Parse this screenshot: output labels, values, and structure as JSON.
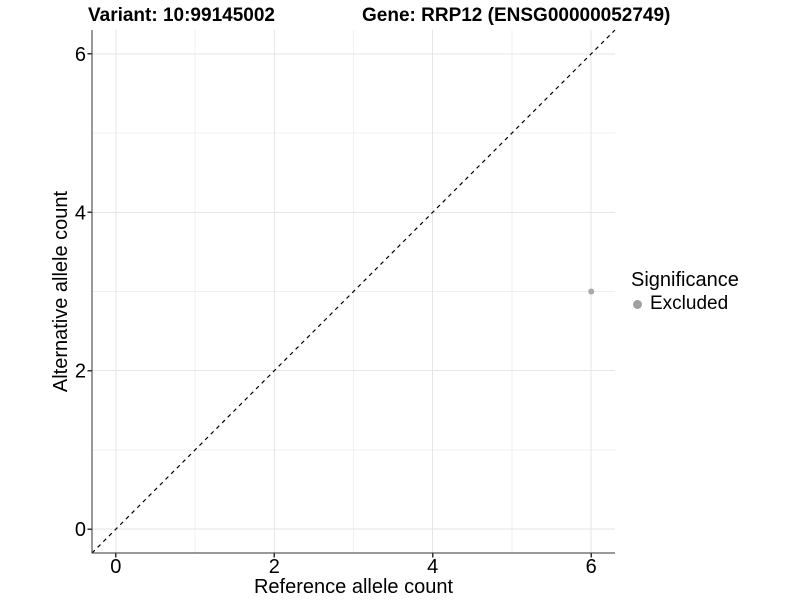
{
  "chart_data": {
    "type": "scatter",
    "titles": {
      "variant": "Variant: 10:99145002",
      "gene": "Gene: RRP12 (ENSG00000052749)"
    },
    "xlabel": "Reference allele count",
    "ylabel": "Alternative allele count",
    "xlim": [
      -0.3,
      6.3
    ],
    "ylim": [
      -0.3,
      6.3
    ],
    "x_major_ticks": [
      0,
      2,
      4,
      6
    ],
    "y_major_ticks": [
      0,
      2,
      4,
      6
    ],
    "x_minor_ticks": [
      1,
      3,
      5
    ],
    "y_minor_ticks": [
      1,
      3,
      5
    ],
    "grid": "on",
    "reference_line": {
      "type": "identity",
      "slope": 1,
      "intercept": 0,
      "style": "dashed",
      "color": "#000000"
    },
    "series": [
      {
        "name": "Excluded",
        "color": "#a9a9a9",
        "points": [
          {
            "x": 6,
            "y": 3
          }
        ]
      }
    ],
    "legend": {
      "position": "right",
      "title": "Significance",
      "entries": [
        {
          "label": "Excluded",
          "color": "#a0a0a0",
          "marker": "circle"
        }
      ]
    },
    "colors": {
      "grid_major": "#e6e6e6",
      "grid_minor": "#f0f0f0",
      "axis_line": "#333333",
      "tick": "#333333",
      "text": "#000000",
      "background": "#ffffff"
    }
  }
}
